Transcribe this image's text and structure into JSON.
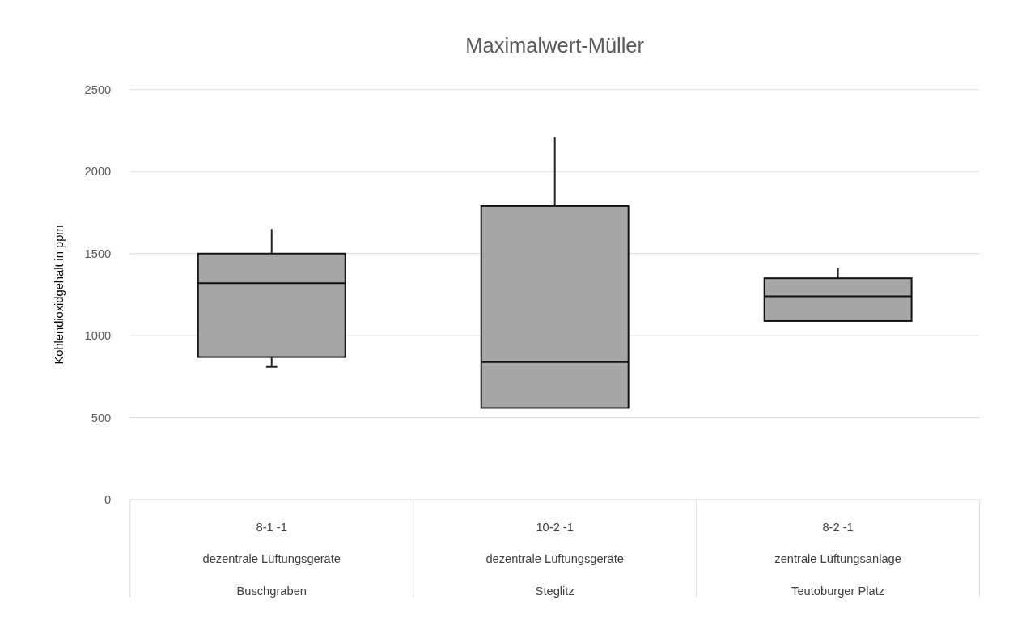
{
  "chart_data": {
    "type": "box",
    "title": "Maximalwert-Müller",
    "ylabel": "Kohlendioxidgehalt in ppm",
    "categories": [
      "8-1 -1\ndezentrale Lüftungsgeräte\nBuschgraben",
      "10-2 -1\ndezentrale Lüftungsgeräte\nSteglitz",
      "8-2 -1\nzentrale Lüftungsanlage\nTeutoburger Platz"
    ],
    "boxes": [
      {
        "low": 810,
        "q1": 870,
        "median": 1320,
        "q3": 1500,
        "high": 1650
      },
      {
        "low": 560,
        "q1": 560,
        "median": 840,
        "q3": 1790,
        "high": 2210
      },
      {
        "low": 1090,
        "q1": 1090,
        "median": 1240,
        "q3": 1350,
        "high": 1410
      }
    ],
    "color": "#a6a6a6",
    "ylim": [
      0,
      2500
    ],
    "yticks": [
      0,
      500,
      1000,
      1500,
      2000,
      2500
    ],
    "grid": "y"
  }
}
